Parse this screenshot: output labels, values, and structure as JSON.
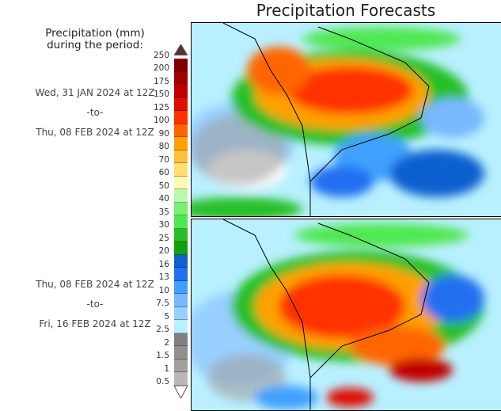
{
  "title": "Precipitation Forecasts",
  "legend": {
    "title_line1": "Precipitation (mm)",
    "title_line2": "during the period:",
    "labels": [
      "250",
      "200",
      "175",
      "150",
      "125",
      "100",
      "90",
      "80",
      "70",
      "60",
      "50",
      "40",
      "35",
      "30",
      "25",
      "20",
      "16",
      "13",
      "10",
      "7.5",
      "5",
      "2.5",
      "2",
      "1.5",
      "1",
      "0.5"
    ],
    "colors": [
      "#800000",
      "#a00000",
      "#c00000",
      "#e01000",
      "#ff3000",
      "#ff6600",
      "#ffa000",
      "#ffc040",
      "#ffe070",
      "#fff8b0",
      "#b8f8b0",
      "#78f070",
      "#50e850",
      "#28c028",
      "#10a010",
      "#1060d0",
      "#2070f0",
      "#40a0ff",
      "#78b8ff",
      "#98d0ff",
      "#b8f0ff",
      "#808080",
      "#909090",
      "#a0a0a0",
      "#b8b8b8"
    ],
    "over_color": "#5a3030",
    "under_color": "#ffffff"
  },
  "periods": [
    {
      "start": "Wed, 31 JAN 2024 at 12Z",
      "sep": "-to-",
      "end": "Thu, 08 FEB 2024 at 12Z"
    },
    {
      "start": "Thu, 08 FEB 2024 at 12Z",
      "sep": "-to-",
      "end": "Fri, 16 FEB 2024 at 12Z"
    }
  ]
}
